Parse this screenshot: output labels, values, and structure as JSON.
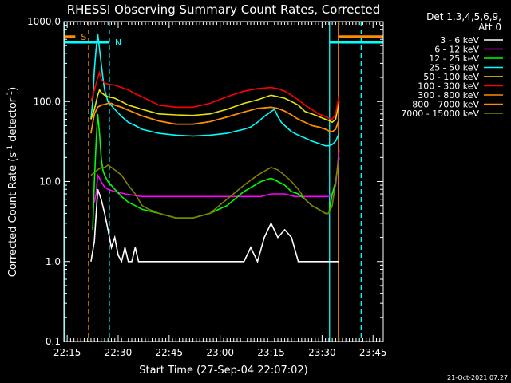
{
  "chart_data": {
    "type": "line",
    "title": "RHESSI Observing Summary Count Rates, Corrected",
    "xlabel": "Start Time (27-Sep-04 22:07:02)",
    "ylabel_main": "Corrected Count Rate (s",
    "ylabel_sup1": "-1",
    "ylabel_mid": " detector",
    "ylabel_sup2": "-1",
    "ylabel_end": ")",
    "yscale": "log",
    "ylim": [
      0.1,
      1000
    ],
    "xlim_min": [
      7.03,
      101
    ],
    "x_tick_labels": [
      "22:15",
      "22:30",
      "22:45",
      "23:00",
      "23:15",
      "23:30",
      "23:45"
    ],
    "x_tick_min": [
      8,
      23,
      38,
      53,
      68,
      83,
      98
    ],
    "y_tick_labels": [
      "0.1",
      "1.0",
      "10.0",
      "100.0",
      "1000.0"
    ],
    "y_tick_values": [
      0.1,
      1,
      10,
      100,
      1000
    ],
    "legend_header_1": "Det 1,3,4,5,6,9,",
    "legend_header_2": "Att 0",
    "legend_position": "right",
    "series": [
      {
        "name": "3 - 6 keV",
        "color": "#ffffff",
        "x": [
          15,
          16,
          17,
          18,
          19,
          20,
          21,
          22,
          23,
          24,
          25,
          26,
          27,
          28,
          29,
          30,
          31,
          33,
          35,
          37,
          40,
          45,
          50,
          55,
          60,
          62,
          64,
          66,
          68,
          70,
          72,
          74,
          76,
          78,
          80,
          82,
          84,
          85,
          86,
          87,
          88
        ],
        "y": [
          1.0,
          1.8,
          8.0,
          6.0,
          4.0,
          2.5,
          1.5,
          2.0,
          1.2,
          1.0,
          1.5,
          1.0,
          1.0,
          1.5,
          1.0,
          1.0,
          1.0,
          1.0,
          1.0,
          1.0,
          1.0,
          1.0,
          1.0,
          1.0,
          1.0,
          1.5,
          1.0,
          2.0,
          3.0,
          2.0,
          2.5,
          2.0,
          1.0,
          1.0,
          1.0,
          1.0,
          1.0,
          1.0,
          1.0,
          1.0,
          1.0
        ]
      },
      {
        "name": "6 - 12 keV",
        "color": "#ff00ff",
        "x": [
          16,
          16.5,
          17,
          17.5,
          18,
          19,
          20,
          22,
          25,
          30,
          35,
          40,
          45,
          50,
          55,
          60,
          65,
          68,
          70,
          72,
          75,
          78,
          80,
          82,
          84,
          85,
          86,
          87,
          88
        ],
        "y": [
          5.5,
          7.0,
          12.0,
          11.0,
          10.0,
          8.5,
          8.0,
          7.5,
          7.0,
          6.5,
          6.5,
          6.5,
          6.5,
          6.5,
          6.5,
          6.5,
          6.5,
          7.0,
          7.0,
          7.0,
          6.5,
          6.5,
          6.5,
          6.5,
          6.5,
          6.5,
          7.0,
          9.0,
          25.0
        ]
      },
      {
        "name": "12 - 25 keV",
        "color": "#00ff00",
        "x": [
          15.5,
          16,
          16.5,
          17,
          17.5,
          18,
          18.5,
          19,
          20,
          22,
          24,
          26,
          28,
          30,
          35,
          40,
          45,
          50,
          55,
          60,
          65,
          68,
          70,
          72,
          74,
          76,
          78,
          80,
          82,
          84,
          85,
          86,
          87,
          88
        ],
        "y": [
          2.5,
          10.0,
          30.0,
          70.0,
          40.0,
          20.0,
          14.0,
          12.0,
          10.0,
          8.0,
          6.5,
          5.5,
          5.0,
          4.5,
          4.0,
          3.5,
          3.5,
          4.0,
          5.0,
          7.5,
          10.0,
          11.0,
          10.0,
          9.0,
          7.5,
          7.0,
          6.0,
          5.0,
          4.5,
          4.0,
          4.0,
          7.0,
          10.0,
          20.0
        ]
      },
      {
        "name": "25 - 50 keV",
        "color": "#00ffff",
        "x": [
          15,
          15.5,
          16,
          16.5,
          17,
          17.5,
          18,
          18.5,
          19,
          20,
          22,
          24,
          26,
          28,
          30,
          35,
          40,
          45,
          50,
          55,
          60,
          62,
          64,
          66,
          68,
          69,
          70,
          71,
          72,
          74,
          76,
          78,
          80,
          82,
          84,
          85,
          86,
          87,
          88
        ],
        "y": [
          60,
          100,
          250,
          450,
          700,
          450,
          300,
          200,
          140,
          100,
          80,
          65,
          55,
          50,
          45,
          40,
          38,
          37,
          38,
          40,
          45,
          48,
          55,
          65,
          75,
          80,
          65,
          55,
          50,
          42,
          38,
          35,
          32,
          30,
          28,
          28,
          29,
          32,
          40
        ]
      },
      {
        "name": "50 - 100 keV",
        "color": "#e6e600",
        "x": [
          15,
          16,
          17,
          17.5,
          18,
          19,
          20,
          22,
          24,
          26,
          28,
          30,
          35,
          40,
          45,
          50,
          55,
          60,
          64,
          68,
          70,
          72,
          74,
          76,
          78,
          80,
          82,
          84,
          85,
          86,
          87,
          88
        ],
        "y": [
          60,
          80,
          120,
          140,
          130,
          120,
          115,
          110,
          100,
          90,
          85,
          80,
          70,
          68,
          67,
          70,
          80,
          95,
          105,
          120,
          115,
          110,
          100,
          90,
          75,
          70,
          65,
          60,
          58,
          55,
          60,
          100
        ]
      },
      {
        "name": "100 - 300 keV",
        "color": "#ff0000",
        "x": [
          15,
          16,
          17,
          17.5,
          18,
          19,
          20,
          22,
          24,
          26,
          28,
          30,
          35,
          40,
          45,
          50,
          55,
          60,
          64,
          68,
          70,
          72,
          74,
          76,
          78,
          80,
          82,
          84,
          85,
          86,
          87,
          88
        ],
        "y": [
          100,
          140,
          200,
          230,
          190,
          170,
          165,
          160,
          150,
          140,
          125,
          115,
          90,
          85,
          85,
          95,
          115,
          135,
          145,
          150,
          145,
          135,
          120,
          105,
          90,
          80,
          70,
          65,
          62,
          60,
          70,
          120
        ]
      },
      {
        "name": "300 - 800 keV",
        "color": "#ff8c00",
        "x": [
          15,
          16,
          17,
          18,
          19,
          20,
          21,
          22,
          24,
          26,
          28,
          30,
          35,
          40,
          45,
          50,
          55,
          60,
          64,
          68,
          70,
          72,
          74,
          76,
          78,
          80,
          82,
          84,
          85,
          86,
          87,
          88
        ],
        "y": [
          40,
          70,
          85,
          90,
          92,
          95,
          95,
          90,
          85,
          78,
          72,
          66,
          57,
          52,
          52,
          56,
          64,
          74,
          82,
          85,
          82,
          76,
          68,
          60,
          55,
          50,
          48,
          45,
          43,
          42,
          45,
          60
        ]
      },
      {
        "name": "800 - 7000 keV",
        "color": "#ff8c00",
        "x": [
          15,
          16,
          17,
          18,
          19,
          20,
          21,
          22,
          24,
          26,
          28,
          30,
          35,
          40,
          45,
          50,
          55,
          60,
          64,
          68,
          70,
          72,
          74,
          76,
          78,
          80,
          82,
          84,
          85,
          86,
          87,
          88
        ],
        "y": [
          40,
          70,
          85,
          90,
          92,
          95,
          95,
          90,
          85,
          78,
          72,
          66,
          57,
          52,
          52,
          56,
          64,
          74,
          82,
          85,
          82,
          76,
          68,
          60,
          55,
          50,
          48,
          45,
          43,
          42,
          45,
          60
        ]
      },
      {
        "name": "7000 - 15000 keV",
        "color": "#808000",
        "x": [
          15,
          16,
          17,
          18,
          19,
          20,
          21,
          22,
          24,
          26,
          28,
          30,
          32,
          35,
          40,
          45,
          50,
          55,
          60,
          64,
          68,
          70,
          72,
          74,
          76,
          78,
          80,
          82,
          84,
          85,
          86,
          87,
          88
        ],
        "y": [
          12,
          13,
          14,
          15,
          15,
          16,
          15,
          14,
          12,
          9,
          7,
          5,
          4.5,
          4,
          3.5,
          3.5,
          4,
          6,
          9,
          12,
          15,
          14,
          12,
          10,
          8,
          6,
          5,
          4.5,
          4,
          4,
          5,
          10,
          20
        ]
      }
    ],
    "vertical_lines": [
      {
        "label": "",
        "x_min": 7.2,
        "color": "#00ffff",
        "style": "solid"
      },
      {
        "label": "",
        "x_min": 14.3,
        "color": "#ff8c00",
        "style": "dashed"
      },
      {
        "label": "",
        "x_min": 20.4,
        "color": "#00ffff",
        "style": "dashed"
      },
      {
        "label": "",
        "x_min": 85.2,
        "color": "#00ffff",
        "style": "solid"
      },
      {
        "label": "",
        "x_min": 87.8,
        "color": "#ff8c00",
        "style": "solid"
      },
      {
        "label": "",
        "x_min": 94.5,
        "color": "#00ffff",
        "style": "dashed"
      }
    ],
    "bars": [
      {
        "label": "S",
        "color": "#ff8c00",
        "x_min": [
          7.03,
          10.4
        ],
        "y": 650
      },
      {
        "label": "",
        "color": "#ff8c00",
        "x_min": [
          87.8,
          101
        ],
        "y": 650
      },
      {
        "label": "N",
        "color": "#00ffff",
        "x_min": [
          7.03,
          20.4
        ],
        "y": 550
      },
      {
        "label": "",
        "color": "#00ffff",
        "x_min": [
          85.2,
          101
        ],
        "y": 550
      }
    ]
  },
  "footer": {
    "timestamp": "21-Oct-2021 07:27"
  }
}
